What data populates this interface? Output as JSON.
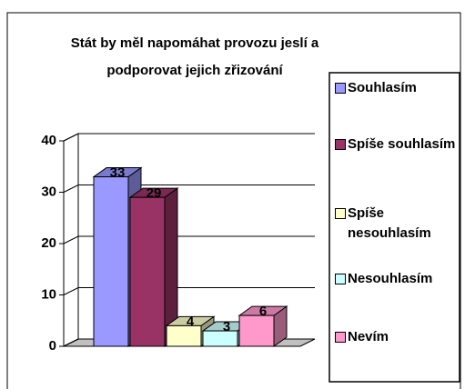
{
  "chart_data": {
    "type": "bar3d",
    "title": [
      "Stát by měl napomáhat provozu jeslí a",
      "podporovat jejich zřizování"
    ],
    "series": [
      {
        "name": "Souhlasím",
        "color": "#9999ff",
        "values": [
          33
        ]
      },
      {
        "name": "Spíše souhlasím",
        "color": "#993366",
        "values": [
          29
        ]
      },
      {
        "name": "Spíše nesouhlasím",
        "color": "#ffffcc",
        "values": [
          4
        ]
      },
      {
        "name": "Nesouhlasím",
        "color": "#ccffff",
        "values": [
          3
        ]
      },
      {
        "name": "Nevím",
        "color": "#ff99cc",
        "values": [
          6
        ]
      }
    ],
    "ylim": [
      0,
      40
    ],
    "yticks": [
      0,
      10,
      20,
      30,
      40
    ],
    "grid": true,
    "legend": "right"
  }
}
